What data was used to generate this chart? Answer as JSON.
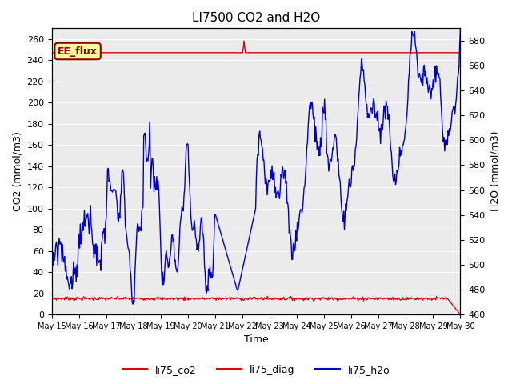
{
  "title": "LI7500 CO2 and H2O",
  "xlabel": "Time",
  "ylabel_left": "CO2 (mmol/m3)",
  "ylabel_right": "H2O (mmol/m3)",
  "xlim": [
    0,
    15
  ],
  "ylim_left": [
    0,
    270
  ],
  "ylim_right": [
    460,
    690
  ],
  "yticks_left": [
    0,
    20,
    40,
    60,
    80,
    100,
    120,
    140,
    160,
    180,
    200,
    220,
    240,
    260
  ],
  "yticks_right": [
    460,
    480,
    500,
    520,
    540,
    560,
    580,
    600,
    620,
    640,
    660,
    680
  ],
  "xtick_labels": [
    "May 15",
    "May 16",
    "May 17",
    "May 18",
    "May 19",
    "May 20",
    "May 21",
    "May 22",
    "May 23",
    "May 24",
    "May 25",
    "May 26",
    "May 27",
    "May 28",
    "May 29",
    "May 30"
  ],
  "annotation_text": "EE_flux",
  "annotation_color": "#8B0000",
  "annotation_bg": "#FFFF99",
  "bg_color": "#EBEBEB",
  "line_co2_color": "#DD0000",
  "line_diag_color": "#DD0000",
  "line_h2o_color": "#0000CC",
  "legend_labels": [
    "li75_co2",
    "li75_diag",
    "li75_h2o"
  ],
  "co2_value": 247.0,
  "co2_spike_x": 7.0,
  "co2_spike_val": 258.0,
  "diag_value": 15.0,
  "figsize": [
    6.4,
    4.8
  ],
  "dpi": 100
}
